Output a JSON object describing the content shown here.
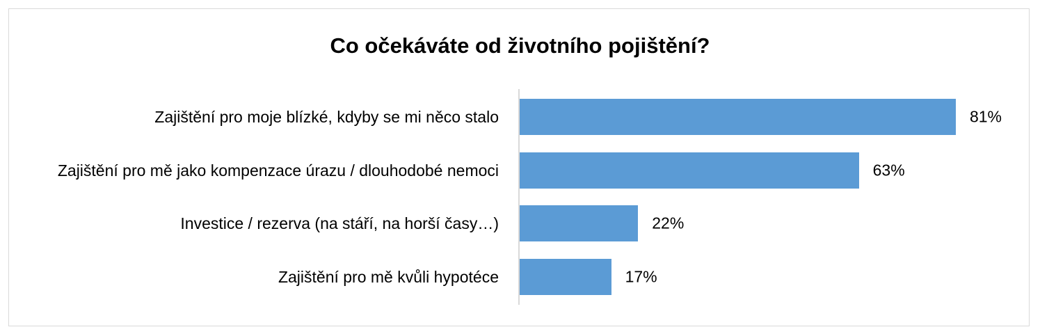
{
  "chart_data": {
    "type": "bar",
    "orientation": "horizontal",
    "title": "Co očekáváte od životního pojištění?",
    "categories": [
      "Zajištění pro moje blízké, kdyby se mi něco stalo",
      "Zajištění pro mě jako kompenzace úrazu / dlouhodobé nemoci",
      "Investice / rezerva (na stáří, na horší časy…)",
      "Zajištění pro mě kvůli hypotéce"
    ],
    "values": [
      81,
      63,
      22,
      17
    ],
    "value_labels": [
      "81%",
      "63%",
      "22%",
      "17%"
    ],
    "color": "#5b9bd5"
  }
}
